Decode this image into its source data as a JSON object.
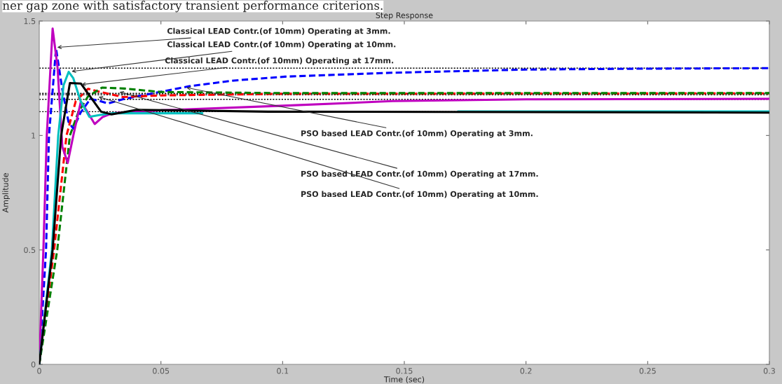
{
  "chart_data": {
    "type": "line",
    "title": "Step Response",
    "xlabel": "Time (sec)",
    "ylabel": "Amplitude",
    "xlim": [
      0,
      0.3
    ],
    "xticks": [
      0,
      0.05,
      0.1,
      0.15,
      0.2,
      0.25,
      0.3
    ],
    "ylim": [
      0,
      1.5
    ],
    "yticks": [
      0,
      0.5,
      1,
      1.5
    ],
    "grid": false,
    "series": [
      {
        "color": "#0000ff",
        "line_style": "dashed",
        "x": [
          0,
          0.0028,
          0.004,
          0.0069,
          0.0095,
          0.012,
          0.014,
          0.017,
          0.021,
          0.025,
          0.0282,
          0.035,
          0.0496,
          0.0616,
          0.08,
          0.101,
          0.145,
          0.2,
          0.25,
          0.3
        ],
        "values": [
          0,
          0.5,
          1.0,
          1.38,
          1.2,
          1.06,
          1.03,
          1.1,
          1.16,
          1.15,
          1.14,
          1.16,
          1.19,
          1.215,
          1.24,
          1.257,
          1.274,
          1.288,
          1.292,
          1.294
        ]
      },
      {
        "color": "#ff0000",
        "line_style": "dashed",
        "x": [
          0,
          0.0061,
          0.0112,
          0.015,
          0.0201,
          0.025,
          0.0344,
          0.05,
          0.1,
          0.3
        ],
        "values": [
          0,
          0.5,
          1.0,
          1.15,
          1.204,
          1.19,
          1.168,
          1.175,
          1.182,
          1.184
        ]
      },
      {
        "color": "#008000",
        "line_style": "dashed",
        "x": [
          0,
          0.0074,
          0.0126,
          0.016,
          0.02,
          0.0258,
          0.035,
          0.05,
          0.1,
          0.3
        ],
        "values": [
          0,
          0.5,
          1.0,
          1.1,
          1.17,
          1.209,
          1.205,
          1.19,
          1.185,
          1.185
        ]
      },
      {
        "color": "#bf00bf",
        "line_style": "solid",
        "x": [
          0,
          0.0017,
          0.0031,
          0.0055,
          0.0075,
          0.0095,
          0.0117,
          0.014,
          0.0171,
          0.02,
          0.0228,
          0.026,
          0.03,
          0.05,
          0.1,
          0.145,
          0.2,
          0.3
        ],
        "values": [
          0,
          0.5,
          1.0,
          1.467,
          1.3,
          0.95,
          0.88,
          1.0,
          1.148,
          1.1,
          1.05,
          1.08,
          1.097,
          1.11,
          1.13,
          1.15,
          1.158,
          1.16
        ]
      },
      {
        "color": "#00bfbf",
        "line_style": "solid",
        "x": [
          0,
          0.0052,
          0.0078,
          0.01,
          0.0121,
          0.014,
          0.017,
          0.0206,
          0.025,
          0.03,
          0.067,
          0.12,
          0.172,
          0.3
        ],
        "values": [
          0,
          0.5,
          1.0,
          1.22,
          1.278,
          1.25,
          1.15,
          1.081,
          1.09,
          1.097,
          1.097,
          null,
          1.105,
          1.105
        ]
      },
      {
        "color": "#000000",
        "line_style": "solid",
        "x": [
          0,
          0.0055,
          0.009,
          0.0126,
          0.0171,
          0.0254,
          0.0297,
          0.04,
          0.094,
          0.3
        ],
        "values": [
          0,
          0.5,
          1.0,
          1.229,
          1.227,
          1.104,
          1.092,
          1.112,
          1.104,
          1.1
        ]
      }
    ],
    "ref_lines": [
      {
        "axis": "y",
        "value": 1.294,
        "color": "#000000",
        "line_style": "dotted"
      },
      {
        "axis": "y",
        "value": 1.184,
        "color": "#000000",
        "line_style": "dotted"
      },
      {
        "axis": "y",
        "value": 1.178,
        "color": "#000000",
        "line_style": "dotted"
      },
      {
        "axis": "y",
        "value": 1.158,
        "color": "#000000",
        "line_style": "dotted"
      },
      {
        "axis": "y",
        "value": 1.104,
        "color": "#000000",
        "line_style": "dotted"
      }
    ],
    "annotations": [
      "ner gap zone with satisfactory transient performance criterions.",
      {
        "text": "Classical LEAD Contr.(of 10mm) Operating at 3mm.",
        "x": 0.0074,
        "y": 1.385
      },
      {
        "text": "Classical LEAD Contr.(of 10mm) Operating at 10mm.",
        "x": 0.0133,
        "y": 1.28
      },
      {
        "text": "Classical LEAD Contr.(of 10mm) Operating at 17mm.",
        "x": 0.0173,
        "y": 1.222
      },
      {
        "text": "PSO based LEAD Contr.(of 10mm) Operating at 3mm.",
        "x": 0.0605,
        "y": 1.209
      },
      {
        "text": "PSO based LEAD Contr.(of 10mm) Operating at 17mm.",
        "x": 0.033,
        "y": 1.19
      },
      {
        "text": "PSO based LEAD Contr.(of 10mm) Operating at 10mm.",
        "x": 0.0244,
        "y": 1.169
      }
    ]
  }
}
